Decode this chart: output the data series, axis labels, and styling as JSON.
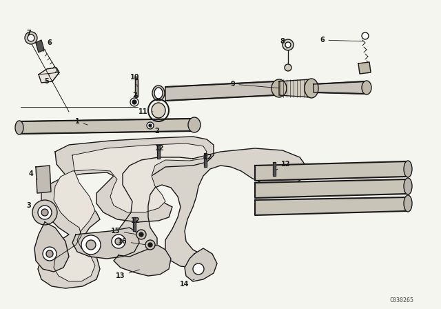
{
  "background_color": "#f5f5f0",
  "figure_width": 6.4,
  "figure_height": 4.48,
  "dpi": 100,
  "part_number_label": "C030265",
  "line_color": "#1a1a1a",
  "fill_color": "#e8e4dc",
  "dark_fill": "#555555",
  "label_fontsize": 7,
  "ax_bg": "#f5f5f0"
}
